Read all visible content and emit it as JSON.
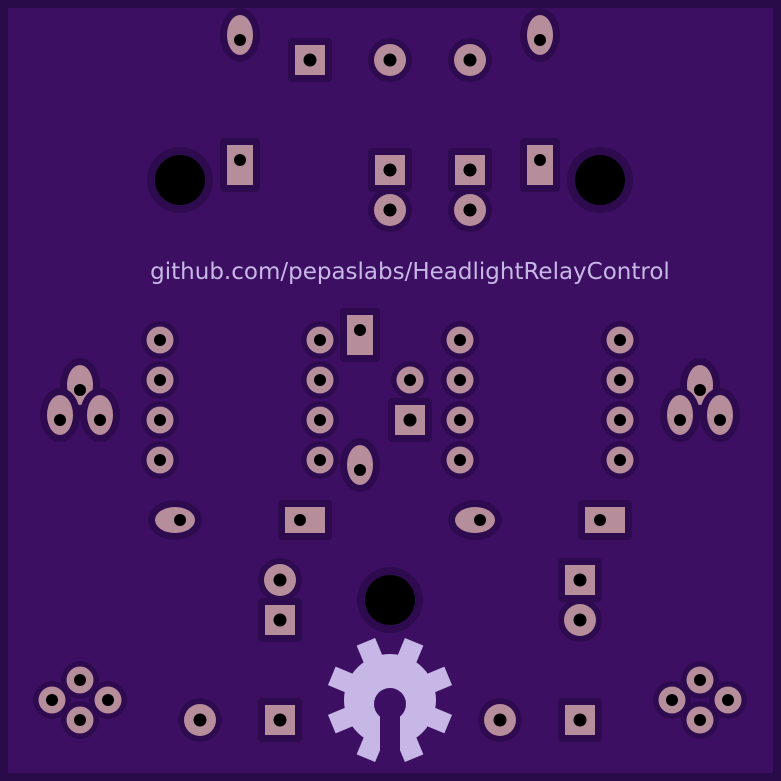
{
  "board": {
    "silkscreen_text": "github.com/pepaslabs/HeadlightRelayControl",
    "logo_name": "open-hardware-gear-logo",
    "colors": {
      "board_edge": "#2a0b4a",
      "board_fill": "#3d0f63",
      "soldermask_ring": "#2e0b4f",
      "copper_pad": "#b68d9b",
      "drill_hole": "#000000",
      "silkscreen": "#c7b7e6"
    }
  }
}
